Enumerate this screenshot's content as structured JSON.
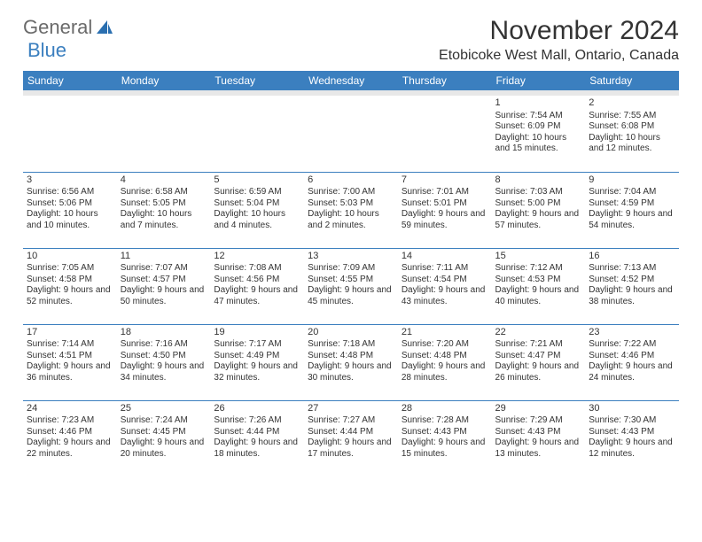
{
  "logo": {
    "part1": "General",
    "part2": "Blue"
  },
  "title": "November 2024",
  "location": "Etobicoke West Mall, Ontario, Canada",
  "colors": {
    "header_bg": "#3b7fbf",
    "header_fg": "#ffffff",
    "subhead_bg": "#e8e8e8",
    "cell_border": "#3b7fbf",
    "text": "#333333",
    "page_bg": "#ffffff"
  },
  "day_headers": [
    "Sunday",
    "Monday",
    "Tuesday",
    "Wednesday",
    "Thursday",
    "Friday",
    "Saturday"
  ],
  "weeks": [
    [
      {
        "n": "",
        "sr": "",
        "ss": "",
        "dl": ""
      },
      {
        "n": "",
        "sr": "",
        "ss": "",
        "dl": ""
      },
      {
        "n": "",
        "sr": "",
        "ss": "",
        "dl": ""
      },
      {
        "n": "",
        "sr": "",
        "ss": "",
        "dl": ""
      },
      {
        "n": "",
        "sr": "",
        "ss": "",
        "dl": ""
      },
      {
        "n": "1",
        "sr": "Sunrise: 7:54 AM",
        "ss": "Sunset: 6:09 PM",
        "dl": "Daylight: 10 hours and 15 minutes."
      },
      {
        "n": "2",
        "sr": "Sunrise: 7:55 AM",
        "ss": "Sunset: 6:08 PM",
        "dl": "Daylight: 10 hours and 12 minutes."
      }
    ],
    [
      {
        "n": "3",
        "sr": "Sunrise: 6:56 AM",
        "ss": "Sunset: 5:06 PM",
        "dl": "Daylight: 10 hours and 10 minutes."
      },
      {
        "n": "4",
        "sr": "Sunrise: 6:58 AM",
        "ss": "Sunset: 5:05 PM",
        "dl": "Daylight: 10 hours and 7 minutes."
      },
      {
        "n": "5",
        "sr": "Sunrise: 6:59 AM",
        "ss": "Sunset: 5:04 PM",
        "dl": "Daylight: 10 hours and 4 minutes."
      },
      {
        "n": "6",
        "sr": "Sunrise: 7:00 AM",
        "ss": "Sunset: 5:03 PM",
        "dl": "Daylight: 10 hours and 2 minutes."
      },
      {
        "n": "7",
        "sr": "Sunrise: 7:01 AM",
        "ss": "Sunset: 5:01 PM",
        "dl": "Daylight: 9 hours and 59 minutes."
      },
      {
        "n": "8",
        "sr": "Sunrise: 7:03 AM",
        "ss": "Sunset: 5:00 PM",
        "dl": "Daylight: 9 hours and 57 minutes."
      },
      {
        "n": "9",
        "sr": "Sunrise: 7:04 AM",
        "ss": "Sunset: 4:59 PM",
        "dl": "Daylight: 9 hours and 54 minutes."
      }
    ],
    [
      {
        "n": "10",
        "sr": "Sunrise: 7:05 AM",
        "ss": "Sunset: 4:58 PM",
        "dl": "Daylight: 9 hours and 52 minutes."
      },
      {
        "n": "11",
        "sr": "Sunrise: 7:07 AM",
        "ss": "Sunset: 4:57 PM",
        "dl": "Daylight: 9 hours and 50 minutes."
      },
      {
        "n": "12",
        "sr": "Sunrise: 7:08 AM",
        "ss": "Sunset: 4:56 PM",
        "dl": "Daylight: 9 hours and 47 minutes."
      },
      {
        "n": "13",
        "sr": "Sunrise: 7:09 AM",
        "ss": "Sunset: 4:55 PM",
        "dl": "Daylight: 9 hours and 45 minutes."
      },
      {
        "n": "14",
        "sr": "Sunrise: 7:11 AM",
        "ss": "Sunset: 4:54 PM",
        "dl": "Daylight: 9 hours and 43 minutes."
      },
      {
        "n": "15",
        "sr": "Sunrise: 7:12 AM",
        "ss": "Sunset: 4:53 PM",
        "dl": "Daylight: 9 hours and 40 minutes."
      },
      {
        "n": "16",
        "sr": "Sunrise: 7:13 AM",
        "ss": "Sunset: 4:52 PM",
        "dl": "Daylight: 9 hours and 38 minutes."
      }
    ],
    [
      {
        "n": "17",
        "sr": "Sunrise: 7:14 AM",
        "ss": "Sunset: 4:51 PM",
        "dl": "Daylight: 9 hours and 36 minutes."
      },
      {
        "n": "18",
        "sr": "Sunrise: 7:16 AM",
        "ss": "Sunset: 4:50 PM",
        "dl": "Daylight: 9 hours and 34 minutes."
      },
      {
        "n": "19",
        "sr": "Sunrise: 7:17 AM",
        "ss": "Sunset: 4:49 PM",
        "dl": "Daylight: 9 hours and 32 minutes."
      },
      {
        "n": "20",
        "sr": "Sunrise: 7:18 AM",
        "ss": "Sunset: 4:48 PM",
        "dl": "Daylight: 9 hours and 30 minutes."
      },
      {
        "n": "21",
        "sr": "Sunrise: 7:20 AM",
        "ss": "Sunset: 4:48 PM",
        "dl": "Daylight: 9 hours and 28 minutes."
      },
      {
        "n": "22",
        "sr": "Sunrise: 7:21 AM",
        "ss": "Sunset: 4:47 PM",
        "dl": "Daylight: 9 hours and 26 minutes."
      },
      {
        "n": "23",
        "sr": "Sunrise: 7:22 AM",
        "ss": "Sunset: 4:46 PM",
        "dl": "Daylight: 9 hours and 24 minutes."
      }
    ],
    [
      {
        "n": "24",
        "sr": "Sunrise: 7:23 AM",
        "ss": "Sunset: 4:46 PM",
        "dl": "Daylight: 9 hours and 22 minutes."
      },
      {
        "n": "25",
        "sr": "Sunrise: 7:24 AM",
        "ss": "Sunset: 4:45 PM",
        "dl": "Daylight: 9 hours and 20 minutes."
      },
      {
        "n": "26",
        "sr": "Sunrise: 7:26 AM",
        "ss": "Sunset: 4:44 PM",
        "dl": "Daylight: 9 hours and 18 minutes."
      },
      {
        "n": "27",
        "sr": "Sunrise: 7:27 AM",
        "ss": "Sunset: 4:44 PM",
        "dl": "Daylight: 9 hours and 17 minutes."
      },
      {
        "n": "28",
        "sr": "Sunrise: 7:28 AM",
        "ss": "Sunset: 4:43 PM",
        "dl": "Daylight: 9 hours and 15 minutes."
      },
      {
        "n": "29",
        "sr": "Sunrise: 7:29 AM",
        "ss": "Sunset: 4:43 PM",
        "dl": "Daylight: 9 hours and 13 minutes."
      },
      {
        "n": "30",
        "sr": "Sunrise: 7:30 AM",
        "ss": "Sunset: 4:43 PM",
        "dl": "Daylight: 9 hours and 12 minutes."
      }
    ]
  ]
}
